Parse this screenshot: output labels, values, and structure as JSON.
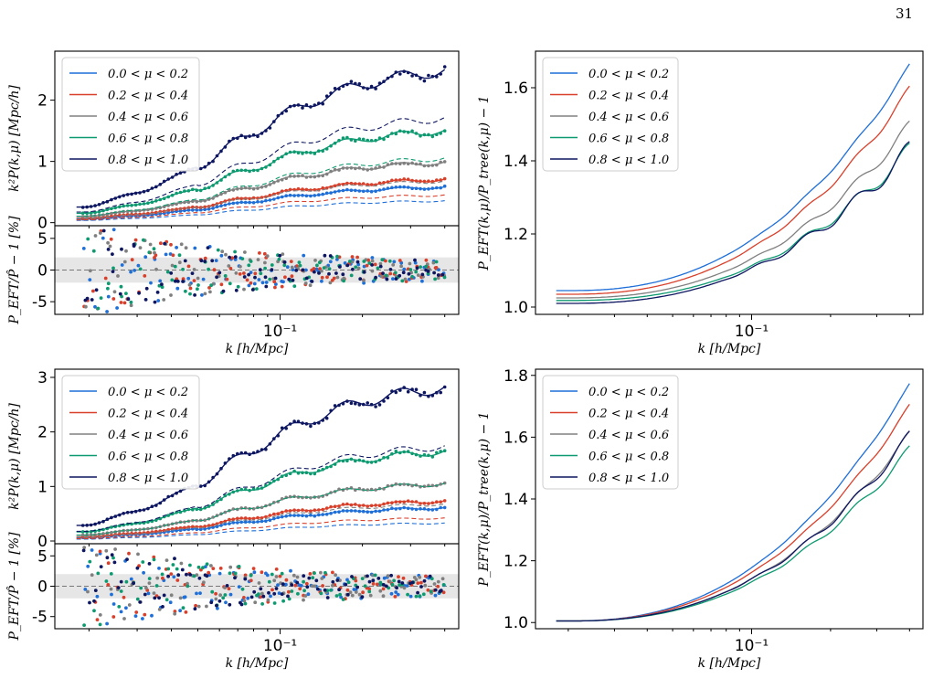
{
  "page_number": "31",
  "colors": {
    "mu_0": "#1f6fd8",
    "mu_1": "#d9402b",
    "mu_2": "#808080",
    "mu_3": "#0e9a70",
    "mu_4": "#0d1660",
    "band": "#e6e6e6",
    "zero_line": "#777777"
  },
  "chart_data": [
    {
      "id": "top-left-power",
      "type": "line",
      "xscale": "log",
      "xlim": [
        0.015,
        0.45
      ],
      "ylim": [
        -0.05,
        2.8
      ],
      "yticks": [
        0,
        1,
        2
      ],
      "ylabel": "k²P(k,μ) [Mpc/h]",
      "legend_position": "upper-left",
      "series": [
        {
          "name": "0.0 < μ < 0.2",
          "amp": 0.62,
          "dashed_amp": 0.38
        },
        {
          "name": "0.2 < μ < 0.4",
          "amp": 0.75,
          "dashed_amp": 0.48
        },
        {
          "name": "0.4 < μ < 0.6",
          "amp": 1.05,
          "dashed_amp": 0.72
        },
        {
          "name": "0.6 < μ < 0.8",
          "amp": 1.6,
          "dashed_amp": 1.12
        },
        {
          "name": "0.8 < μ < 1.0",
          "amp": 2.65,
          "dashed_amp": 1.82
        }
      ]
    },
    {
      "id": "top-left-residual",
      "type": "scatter",
      "xscale": "log",
      "xlim": [
        0.015,
        0.45
      ],
      "ylim": [
        -7,
        7
      ],
      "yticks": [
        -5,
        0,
        5
      ],
      "band": [
        -2,
        2
      ],
      "xtick_label": "10⁻¹",
      "xlabel": "k [h/Mpc]",
      "ylabel": "P_EFT/P̂ − 1 [%]"
    },
    {
      "id": "top-right-ratio",
      "type": "line",
      "xscale": "log",
      "xlim": [
        0.015,
        0.45
      ],
      "ylim": [
        0.98,
        1.7
      ],
      "yticks": [
        1.0,
        1.2,
        1.4,
        1.6
      ],
      "xtick_label": "10⁻¹",
      "xlabel": "k [h/Mpc]",
      "ylabel": "P_EFT(k,μ)/P_tree(k,μ) − 1",
      "legend_position": "upper-left",
      "series": [
        {
          "name": "0.0 < μ < 0.2",
          "start": 1.045,
          "end": 1.66
        },
        {
          "name": "0.2 < μ < 0.4",
          "start": 1.035,
          "end": 1.595
        },
        {
          "name": "0.4 < μ < 0.6",
          "start": 1.025,
          "end": 1.495
        },
        {
          "name": "0.6 < μ < 0.8",
          "start": 1.018,
          "end": 1.43
        },
        {
          "name": "0.8 < μ < 1.0",
          "start": 1.01,
          "end": 1.43
        }
      ]
    },
    {
      "id": "bottom-left-power",
      "type": "line",
      "xscale": "log",
      "xlim": [
        0.015,
        0.45
      ],
      "ylim": [
        -0.05,
        3.15
      ],
      "yticks": [
        0,
        1,
        2,
        3
      ],
      "ylabel": "k²P(k,μ) [Mpc/h]",
      "legend_position": "upper-left",
      "series": [
        {
          "name": "0.0 < μ < 0.2",
          "amp": 0.65,
          "dashed_amp": 0.35
        },
        {
          "name": "0.2 < μ < 0.4",
          "amp": 0.78,
          "dashed_amp": 0.45
        },
        {
          "name": "0.4 < μ < 0.6",
          "amp": 1.12,
          "dashed_amp": 0.72
        },
        {
          "name": "0.6 < μ < 0.8",
          "amp": 1.75,
          "dashed_amp": 1.12
        },
        {
          "name": "0.8 < μ < 1.0",
          "amp": 3.0,
          "dashed_amp": 1.85
        }
      ]
    },
    {
      "id": "bottom-left-residual",
      "type": "scatter",
      "xscale": "log",
      "xlim": [
        0.015,
        0.45
      ],
      "ylim": [
        -7,
        7
      ],
      "yticks": [
        -5,
        0,
        5
      ],
      "band": [
        -2,
        2
      ],
      "xtick_label": "10⁻¹",
      "xlabel": "k [h/Mpc]",
      "ylabel": "P_EFT/P̂ − 1 [%]"
    },
    {
      "id": "bottom-right-ratio",
      "type": "line",
      "xscale": "log",
      "xlim": [
        0.015,
        0.45
      ],
      "ylim": [
        0.98,
        1.82
      ],
      "yticks": [
        1.0,
        1.2,
        1.4,
        1.6,
        1.8
      ],
      "xtick_label": "10⁻¹",
      "xlabel": "k [h/Mpc]",
      "ylabel": "P_EFT(k,μ)/P_tree(k,μ) − 1",
      "legend_position": "upper-left",
      "series": [
        {
          "name": "0.0 < μ < 0.2",
          "start": 1.005,
          "end": 1.77
        },
        {
          "name": "0.2 < μ < 0.4",
          "start": 1.005,
          "end": 1.7
        },
        {
          "name": "0.4 < μ < 0.6",
          "start": 1.005,
          "end": 1.61
        },
        {
          "name": "0.6 < μ < 0.8",
          "start": 1.005,
          "end": 1.56
        },
        {
          "name": "0.8 < μ < 1.0",
          "start": 1.005,
          "end": 1.605
        }
      ]
    }
  ]
}
